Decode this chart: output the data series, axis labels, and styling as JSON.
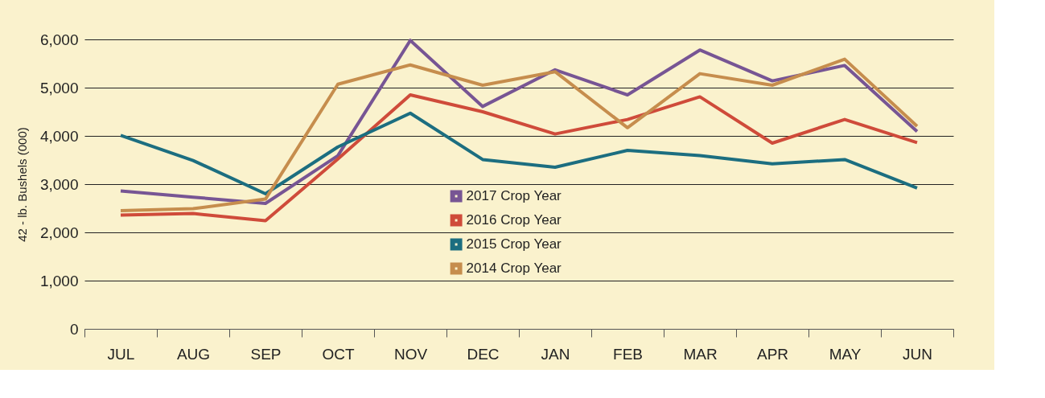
{
  "chart_data": {
    "type": "line",
    "ylabel": "42 - lb. Bushels (000)",
    "categories": [
      "JUL",
      "AUG",
      "SEP",
      "OCT",
      "NOV",
      "DEC",
      "JAN",
      "FEB",
      "MAR",
      "APR",
      "MAY",
      "JUN"
    ],
    "series": [
      {
        "name": "2017 Crop Year",
        "color": "#775594",
        "values": [
          2860,
          2730,
          2600,
          3590,
          5980,
          4610,
          5370,
          4850,
          5780,
          5140,
          5460,
          4090
        ]
      },
      {
        "name": "2016 Crop Year",
        "color": "#cf4b3a",
        "values": [
          2360,
          2390,
          2240,
          3520,
          4850,
          4500,
          4040,
          4340,
          4810,
          3850,
          4340,
          3860
        ]
      },
      {
        "name": "2015 Crop Year",
        "color": "#1c6e80",
        "values": [
          4010,
          3490,
          2800,
          3770,
          4470,
          3510,
          3350,
          3700,
          3590,
          3420,
          3510,
          2920
        ]
      },
      {
        "name": "2014 Crop Year",
        "color": "#c68d4d",
        "values": [
          2450,
          2490,
          2690,
          5070,
          5470,
          5050,
          5330,
          4170,
          5290,
          5050,
          5590,
          4200
        ]
      }
    ],
    "ylim": [
      0,
      6000
    ],
    "yticks": [
      0,
      {
        "value": 1000,
        "label": "1,000"
      },
      {
        "value": 2000,
        "label": "2,000"
      },
      {
        "value": 3000,
        "label": "3,000"
      },
      {
        "value": 4000,
        "label": "4,000"
      },
      {
        "value": 5000,
        "label": "5,000"
      },
      {
        "value": 6000,
        "label": "6,000"
      }
    ],
    "grid": "y",
    "legend": "bottom",
    "marker": "none",
    "line_style": "solid"
  }
}
